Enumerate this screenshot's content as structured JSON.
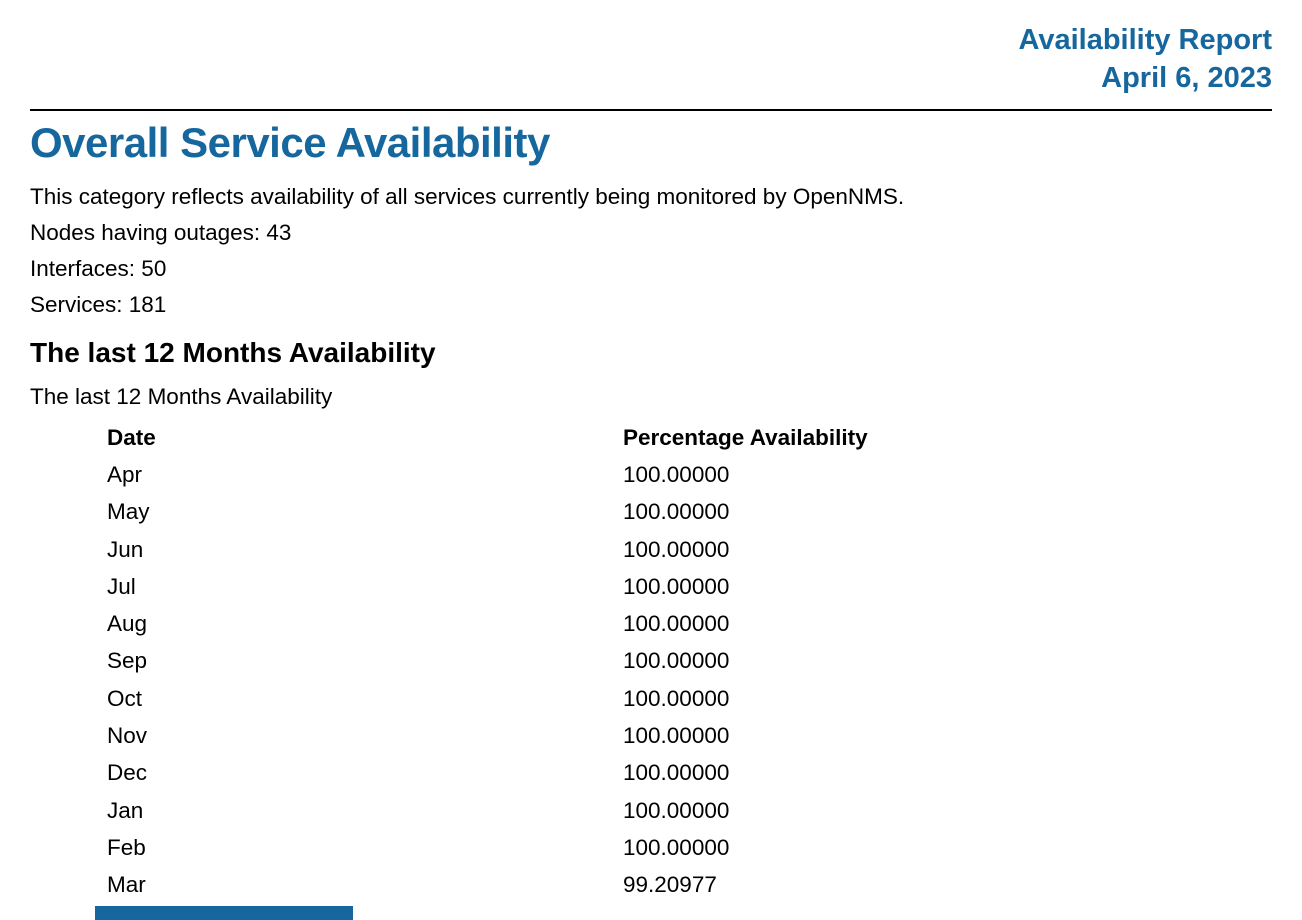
{
  "accent_color": "#15679e",
  "header": {
    "title": "Availability Report",
    "date": "April 6, 2023"
  },
  "section": {
    "title": "Overall Service Availability",
    "description": "This category reflects availability of all services currently being monitored by OpenNMS.",
    "stats": [
      "Nodes having outages: 43",
      "Interfaces: 50",
      "Services: 181"
    ]
  },
  "subsection": {
    "title": "The last 12 Months Availability",
    "caption": "The last 12 Months Availability"
  },
  "table": {
    "columns": [
      "Date",
      "Percentage Availability"
    ],
    "rows": [
      {
        "date": "Apr",
        "availability": "100.00000"
      },
      {
        "date": "May",
        "availability": "100.00000"
      },
      {
        "date": "Jun",
        "availability": "100.00000"
      },
      {
        "date": "Jul",
        "availability": "100.00000"
      },
      {
        "date": "Aug",
        "availability": "100.00000"
      },
      {
        "date": "Sep",
        "availability": "100.00000"
      },
      {
        "date": "Oct",
        "availability": "100.00000"
      },
      {
        "date": "Nov",
        "availability": "100.00000"
      },
      {
        "date": "Dec",
        "availability": "100.00000"
      },
      {
        "date": "Jan",
        "availability": "100.00000"
      },
      {
        "date": "Feb",
        "availability": "100.00000"
      },
      {
        "date": "Mar",
        "availability": "99.20977"
      }
    ]
  }
}
